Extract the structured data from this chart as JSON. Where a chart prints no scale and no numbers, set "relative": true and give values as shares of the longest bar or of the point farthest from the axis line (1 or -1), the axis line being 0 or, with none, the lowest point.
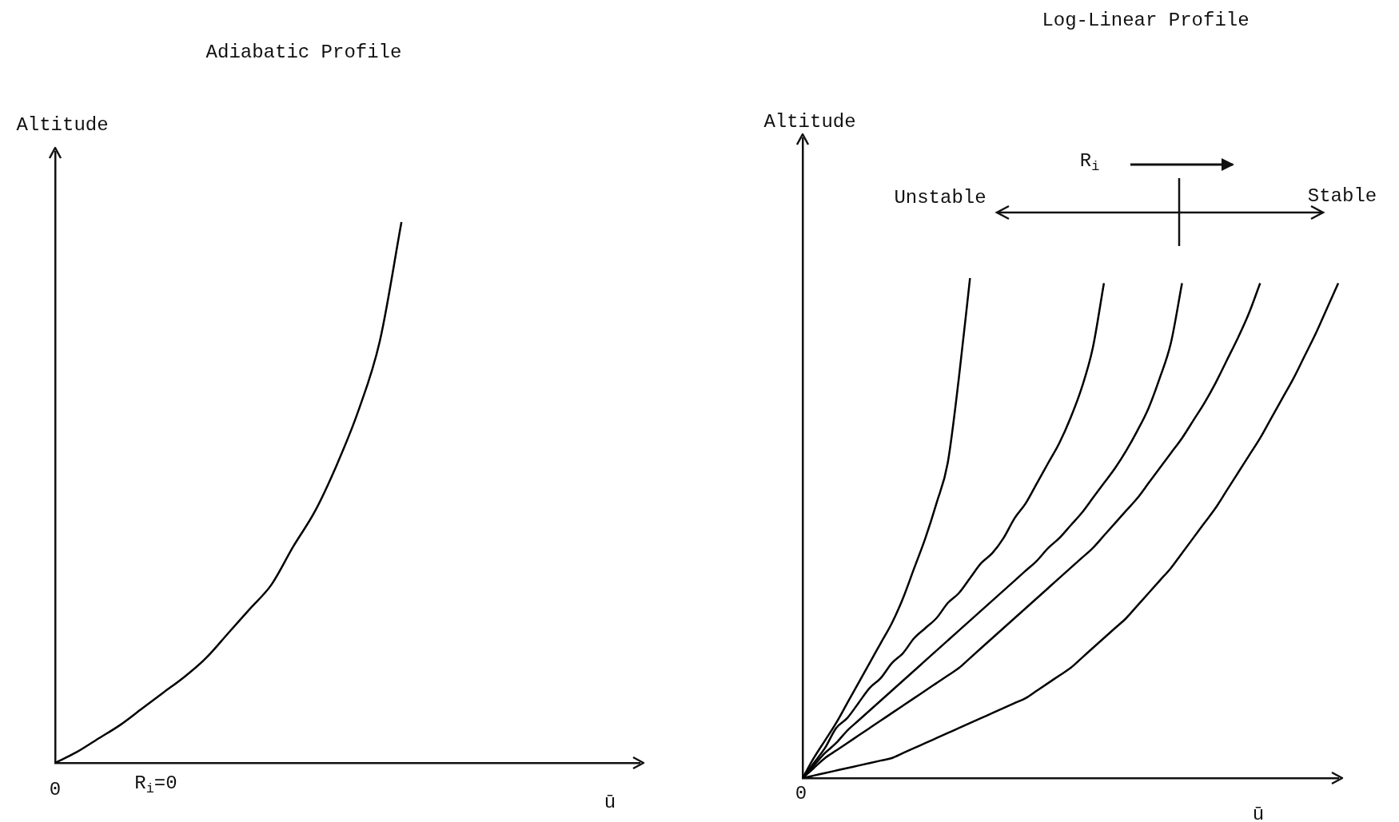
{
  "chart_data": [
    {
      "type": "line",
      "title": "Adiabatic Profile",
      "xlabel": "ū",
      "ylabel": "Altitude",
      "relative": true,
      "marker": "none",
      "categories": [
        null,
        null,
        null,
        null,
        null,
        null,
        null,
        null,
        null,
        null,
        null,
        null,
        null,
        null,
        null,
        null,
        null,
        null,
        null,
        null,
        null,
        null,
        null,
        null,
        null,
        null,
        null,
        null
      ],
      "series": [
        {
          "color": "#000000",
          "values": [
            0,
            0.02,
            0.045,
            0.07,
            0.1,
            0.13,
            0.16,
            0.195,
            0.24,
            0.285,
            0.33,
            0.4,
            0.465,
            0.55,
            0.65,
            0.78,
            1,
            null,
            null,
            null,
            null,
            null,
            null,
            null,
            null,
            null,
            null,
            null
          ]
        }
      ],
      "annotations": [
        "0",
        "R$_{i}$=0"
      ]
    },
    {
      "type": "line",
      "title": "Log-Linear Profile",
      "xlabel": "ū",
      "ylabel": "Altitude",
      "relative": true,
      "marker": "none",
      "categories": [
        null,
        null,
        null,
        null,
        null,
        null,
        null,
        null,
        null,
        null,
        null,
        null,
        null,
        null,
        null,
        null,
        null,
        null,
        null,
        null,
        null,
        null,
        null,
        null,
        null,
        null,
        null,
        null,
        null,
        null,
        null,
        null,
        null,
        null,
        null,
        null,
        null,
        null,
        null,
        null,
        null,
        null,
        null,
        null,
        null,
        null,
        null,
        null,
        null
      ],
      "series": [
        {
          "color": "#000000",
          "values": [
            0,
            0.04,
            0.075,
            0.11,
            0.15,
            0.19,
            0.23,
            0.27,
            0.31,
            0.36,
            0.42,
            0.48,
            0.55,
            0.63,
            0.8,
            1,
            null,
            null,
            null,
            null,
            null,
            null,
            null,
            null,
            null,
            null,
            null,
            null,
            null,
            null,
            null,
            null,
            null,
            null,
            null,
            null,
            null,
            null,
            null,
            null,
            null,
            null,
            null,
            null,
            null,
            null,
            null,
            null,
            null
          ]
        },
        {
          "color": "#000000",
          "values": [
            0,
            0.03,
            0.06,
            0.1,
            0.12,
            0.15,
            0.18,
            0.2,
            0.23,
            0.25,
            0.28,
            0.3,
            0.32,
            0.35,
            0.37,
            0.4,
            0.43,
            0.45,
            0.48,
            0.52,
            0.55,
            0.59,
            0.63,
            0.67,
            0.72,
            0.78,
            0.86,
            0.99,
            null,
            null,
            null,
            null,
            null,
            null,
            null,
            null,
            null,
            null,
            null,
            null,
            null,
            null,
            null,
            null,
            null,
            null,
            null,
            null,
            null
          ]
        },
        {
          "color": "#000000",
          "values": [
            0,
            0.025,
            0.05,
            0.07,
            0.095,
            0.115,
            0.135,
            0.155,
            0.175,
            0.195,
            0.215,
            0.235,
            0.255,
            0.275,
            0.295,
            0.315,
            0.335,
            0.355,
            0.375,
            0.395,
            0.415,
            0.435,
            0.46,
            0.48,
            0.505,
            0.53,
            0.56,
            0.59,
            0.62,
            0.655,
            0.695,
            0.74,
            0.8,
            0.87,
            0.99,
            null,
            null,
            null,
            null,
            null,
            null,
            null,
            null,
            null,
            null,
            null,
            null,
            null,
            null
          ]
        },
        {
          "color": "#000000",
          "values": [
            0,
            0.02,
            0.04,
            0.055,
            0.07,
            0.085,
            0.1,
            0.115,
            0.13,
            0.145,
            0.16,
            0.175,
            0.19,
            0.205,
            0.22,
            0.24,
            0.26,
            0.28,
            0.3,
            0.32,
            0.34,
            0.36,
            0.38,
            0.4,
            0.42,
            0.44,
            0.46,
            0.485,
            0.51,
            0.535,
            0.56,
            0.59,
            0.62,
            0.65,
            0.68,
            0.715,
            0.75,
            0.79,
            0.835,
            0.88,
            0.93,
            0.99,
            null,
            null,
            null,
            null,
            null,
            null,
            null
          ]
        },
        {
          "color": "#000000",
          "values": [
            0,
            0.005,
            0.01,
            0.015,
            0.02,
            0.025,
            0.03,
            0.035,
            0.04,
            0.05,
            0.06,
            0.07,
            0.08,
            0.09,
            0.1,
            0.11,
            0.12,
            0.13,
            0.14,
            0.15,
            0.16,
            0.175,
            0.19,
            0.205,
            0.22,
            0.24,
            0.26,
            0.28,
            0.3,
            0.32,
            0.345,
            0.37,
            0.395,
            0.42,
            0.45,
            0.48,
            0.51,
            0.54,
            0.575,
            0.61,
            0.645,
            0.68,
            0.72,
            0.76,
            0.8,
            0.845,
            0.89,
            0.94,
            0.99
          ]
        }
      ],
      "annotations": [
        "0",
        "R$_{i}$",
        "Unstable",
        "Stable"
      ]
    }
  ]
}
